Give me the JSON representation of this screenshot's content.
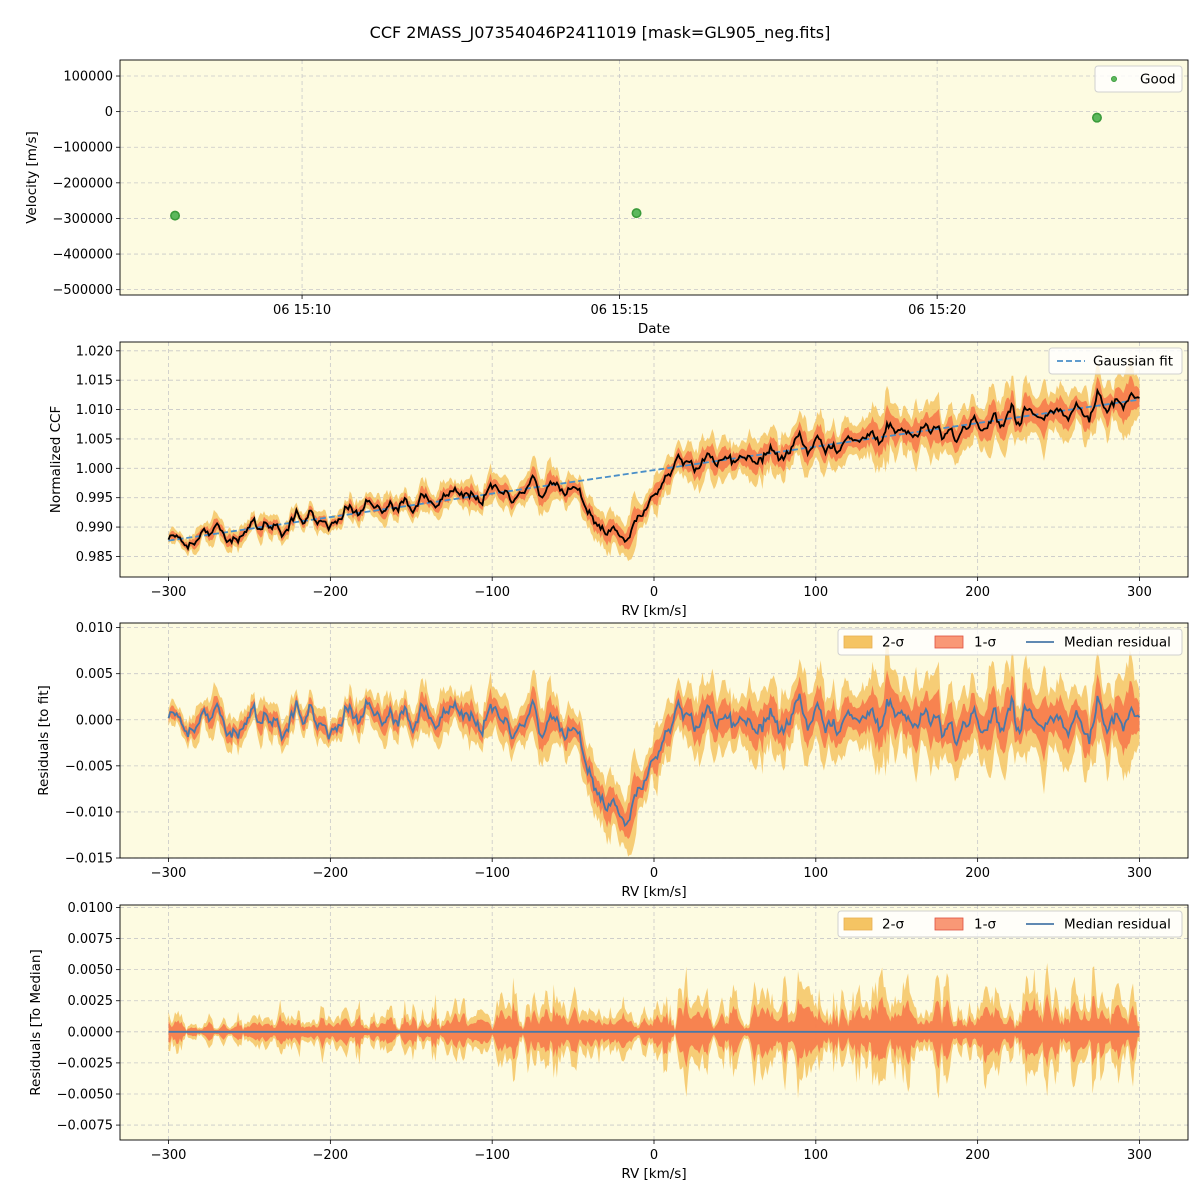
{
  "figure_title": "CCF 2MASS_J07354046P2411019 [mask=GL905_neg.fits]",
  "colors": {
    "axes_bg": "#fdfbe1",
    "grid": "#c8c8c8",
    "good": "#3a9a3a",
    "good_face": "#5cb85c",
    "ccf": "#000000",
    "gauss": "#4a8fc8",
    "band2": "#f5c463",
    "band1": "#f7764a",
    "median": "#4a78a8"
  },
  "chart_data": [
    {
      "type": "scatter",
      "xlabel": "Date",
      "ylabel": "Velocity [m/s]",
      "x_range": [
        "06 15:07:08",
        "06 15:23:57"
      ],
      "ylim": [
        -515000,
        145000
      ],
      "x_ticks": [
        "06 15:10",
        "06 15:15",
        "06 15:20"
      ],
      "y_ticks": [
        -500000,
        -400000,
        -300000,
        -200000,
        -100000,
        0,
        100000
      ],
      "y_tick_labels": [
        "−500000",
        "−400000",
        "−300000",
        "−200000",
        "−100000",
        "0",
        "100000"
      ],
      "grid": true,
      "legend": "top-right",
      "series": [
        {
          "name": "Good",
          "x": [
            "06 15:08:00",
            "06 15:15:16",
            "06 15:22:31"
          ],
          "y": [
            -292000,
            -285000,
            -17000
          ]
        }
      ]
    },
    {
      "type": "line",
      "xlabel": "RV [km/s]",
      "ylabel": "Normalized CCF",
      "xlim": [
        -330,
        330
      ],
      "ylim": [
        0.9815,
        1.0215
      ],
      "x_ticks": [
        -300,
        -200,
        -100,
        0,
        100,
        200,
        300
      ],
      "x_tick_labels": [
        "−300",
        "−200",
        "−100",
        "0",
        "100",
        "200",
        "300"
      ],
      "y_ticks": [
        0.985,
        0.99,
        0.995,
        1.0,
        1.005,
        1.01,
        1.015,
        1.02
      ],
      "y_tick_labels": [
        "0.985",
        "0.990",
        "0.995",
        "1.000",
        "1.005",
        "1.010",
        "1.015",
        "1.020"
      ],
      "grid": true,
      "legend": "top-right",
      "gaussian_fit": {
        "name": "Gaussian fit",
        "x": [
          -300,
          300
        ],
        "y": [
          0.9877,
          1.0117
        ]
      },
      "ccf_trend": {
        "x": [
          -300,
          300
        ],
        "y": [
          0.9877,
          1.0117
        ]
      },
      "dip": {
        "center": -22,
        "width": 16,
        "depth": 0.0105
      },
      "bump": {
        "center": 17,
        "width": 4,
        "height": 0.0035
      },
      "noise_level": 0.0013
    },
    {
      "type": "area",
      "xlabel": "RV [km/s]",
      "ylabel": "Residuals [to fit]",
      "xlim": [
        -330,
        330
      ],
      "ylim": [
        -0.015,
        0.0105
      ],
      "x_ticks": [
        -300,
        -200,
        -100,
        0,
        100,
        200,
        300
      ],
      "x_tick_labels": [
        "−300",
        "−200",
        "−100",
        "0",
        "100",
        "200",
        "300"
      ],
      "y_ticks": [
        -0.015,
        -0.01,
        -0.005,
        0.0,
        0.005,
        0.01
      ],
      "y_tick_labels": [
        "−0.015",
        "−0.010",
        "−0.005",
        "0.000",
        "0.005",
        "0.010"
      ],
      "grid": true,
      "legend": "top-right",
      "legend_entries": [
        "2-σ",
        "1-σ",
        "Median residual"
      ]
    },
    {
      "type": "area",
      "xlabel": "RV [km/s]",
      "ylabel": "Residuals [To Median]",
      "xlim": [
        -330,
        330
      ],
      "ylim": [
        -0.0087,
        0.0102
      ],
      "x_ticks": [
        -300,
        -200,
        -100,
        0,
        100,
        200,
        300
      ],
      "x_tick_labels": [
        "−300",
        "−200",
        "−100",
        "0",
        "100",
        "200",
        "300"
      ],
      "y_ticks": [
        -0.0075,
        -0.005,
        -0.0025,
        0.0,
        0.0025,
        0.005,
        0.0075,
        0.01
      ],
      "y_tick_labels": [
        "−0.0075",
        "−0.0050",
        "−0.0025",
        "0.0000",
        "0.0025",
        "0.0050",
        "0.0075",
        "0.0100"
      ],
      "grid": true,
      "legend": "top-right",
      "legend_entries": [
        "2-σ",
        "1-σ",
        "Median residual"
      ]
    }
  ]
}
